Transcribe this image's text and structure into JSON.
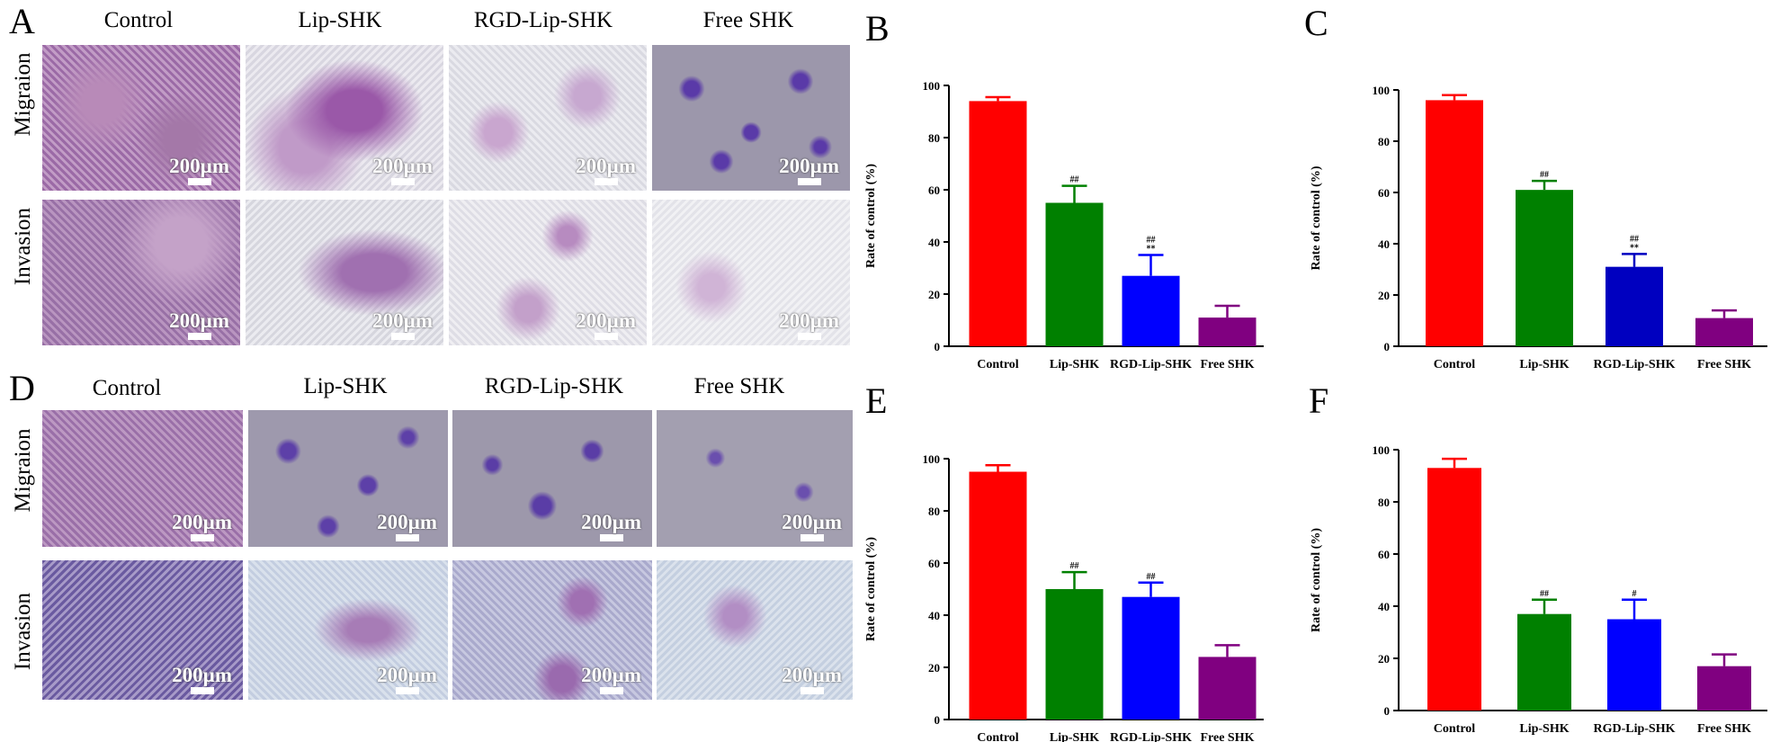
{
  "panel_letters": [
    "A",
    "B",
    "C",
    "D",
    "E",
    "F"
  ],
  "micro_panels": [
    {
      "letter": "A",
      "columns": [
        "Control",
        "Lip-SHK",
        "RGD-Lip-SHK",
        "Free SHK"
      ],
      "rows": [
        "Migraion",
        "Invasion"
      ],
      "scale_label": "200µm"
    },
    {
      "letter": "D",
      "columns": [
        "Control",
        "Lip-SHK",
        "RGD-Lip-SHK",
        "Free SHK"
      ],
      "rows": [
        "Migraion",
        "Invasion"
      ],
      "scale_label": "200µm"
    }
  ],
  "chart_data": [
    {
      "panel": "B",
      "type": "bar",
      "categories": [
        "Control",
        "Lip-SHK",
        "RGD-Lip-SHK",
        "Free SHK"
      ],
      "values": [
        94,
        55,
        27,
        11
      ],
      "errors": [
        1.5,
        6.5,
        8,
        4.5
      ],
      "annotations": [
        "",
        "##",
        "##\n**",
        ""
      ],
      "colors": [
        "#ff0000",
        "#008000",
        "#0000ff",
        "#800080"
      ],
      "xlabel": "",
      "ylabel": "Rate of control (%)",
      "ylim": [
        0,
        100
      ],
      "yticks": [
        0,
        20,
        40,
        60,
        80,
        100
      ],
      "grid": false
    },
    {
      "panel": "C",
      "type": "bar",
      "categories": [
        "Control",
        "Lip-SHK",
        "RGD-Lip-SHK",
        "Free SHK"
      ],
      "values": [
        96,
        61,
        31,
        11
      ],
      "errors": [
        2,
        3.5,
        5,
        3
      ],
      "annotations": [
        "",
        "##",
        "##\n**",
        ""
      ],
      "colors": [
        "#ff0000",
        "#008000",
        "#0000c0",
        "#800080"
      ],
      "xlabel": "",
      "ylabel": "Rate of control (%)",
      "ylim": [
        0,
        100
      ],
      "yticks": [
        0,
        20,
        40,
        60,
        80,
        100
      ],
      "grid": false
    },
    {
      "panel": "E",
      "type": "bar",
      "categories": [
        "Control",
        "Lip-SHK",
        "RGD-Lip-SHK",
        "Free SHK"
      ],
      "values": [
        95,
        50,
        47,
        24
      ],
      "errors": [
        2.5,
        6.5,
        5.5,
        4.5
      ],
      "annotations": [
        "",
        "##",
        "##",
        ""
      ],
      "colors": [
        "#ff0000",
        "#008000",
        "#0000ff",
        "#800080"
      ],
      "xlabel": "",
      "ylabel": "Rate of control (%)",
      "ylim": [
        0,
        100
      ],
      "yticks": [
        0,
        20,
        40,
        60,
        80,
        100
      ],
      "grid": false
    },
    {
      "panel": "F",
      "type": "bar",
      "categories": [
        "Control",
        "Lip-SHK",
        "RGD-Lip-SHK",
        "Free SHK"
      ],
      "values": [
        93,
        37,
        35,
        17
      ],
      "errors": [
        3.5,
        5.5,
        7.5,
        4.5
      ],
      "annotations": [
        "",
        "##",
        "#",
        ""
      ],
      "colors": [
        "#ff0000",
        "#008000",
        "#0000ff",
        "#800080"
      ],
      "xlabel": "",
      "ylabel": "Rate of control (%)",
      "ylim": [
        0,
        100
      ],
      "yticks": [
        0,
        20,
        40,
        60,
        80,
        100
      ],
      "grid": false
    }
  ]
}
